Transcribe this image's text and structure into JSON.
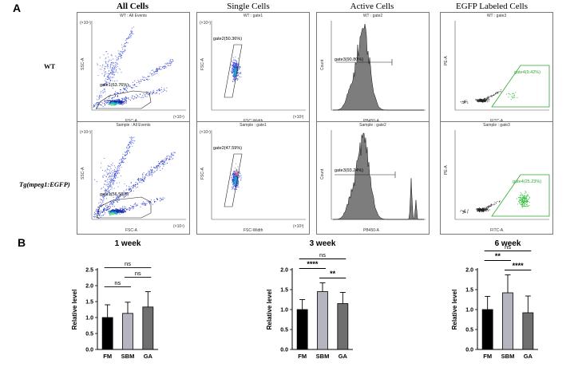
{
  "panel_a_letter": "A",
  "panel_b_letter": "B",
  "columns": [
    "All Cells",
    "Single Cells",
    "Active Cells",
    "EGFP Labeled Cells"
  ],
  "rows": [
    {
      "label": "WT",
      "plots": [
        {
          "title": "WT : All Events",
          "gate": "gate1(63.76%)",
          "xlabel": "FSC-A",
          "ylabel": "SSC-A",
          "yexp": "(×10⁴)",
          "xexp": "(×10⁴)"
        },
        {
          "title": "WT : gate1",
          "gate": "gate2(50.36%)",
          "xlabel": "FSC-Width",
          "ylabel": "FSC-A",
          "yexp": "(×10⁴)",
          "xexp": "(×10³)"
        },
        {
          "title": "WT : gate2",
          "gate": "gate3(90.80%)",
          "xlabel": "PB450-A",
          "ylabel": "Count"
        },
        {
          "title": "WT : gate3",
          "gate": "gate4(9.42%)",
          "xlabel": "FITC-A",
          "ylabel": "PE-A"
        }
      ]
    },
    {
      "label": "Tg(mpeg1:EGFP)",
      "plots": [
        {
          "title": "Sample : All Events",
          "gate": "gate1(56.58%)",
          "xlabel": "FSC-A",
          "ylabel": "SSC-A",
          "yexp": "(×10⁴)",
          "xexp": "(×10⁴)"
        },
        {
          "title": "Sample : gate1",
          "gate": "gate2(47.59%)",
          "xlabel": "FSC-Width",
          "ylabel": "FSC-A",
          "yexp": "(×10⁴)",
          "xexp": "(×10³)"
        },
        {
          "title": "Sample : gate2",
          "gate": "gate3(93.24%)",
          "xlabel": "PB450-A",
          "ylabel": "Count"
        },
        {
          "title": "Sample : gate3",
          "gate": "gate4(25.23%)",
          "xlabel": "FITC-A",
          "ylabel": "PE-A"
        }
      ]
    }
  ],
  "chart_data": [
    {
      "type": "bar",
      "title": "1 week",
      "ylabel": "Relative level",
      "categories": [
        "FM",
        "SBM",
        "GA"
      ],
      "values": [
        1.0,
        1.13,
        1.33
      ],
      "errors": [
        0.4,
        0.35,
        0.48
      ],
      "colors": [
        "#000000",
        "#b5b5c0",
        "#6f6f6f"
      ],
      "ylim": [
        0,
        2.5
      ],
      "yticks": [
        "0.0",
        "0.5",
        "1.0",
        "1.5",
        "2.0",
        "2.5"
      ],
      "significance": [
        {
          "from": 0,
          "to": 2,
          "label": "ns"
        },
        {
          "from": 1,
          "to": 2,
          "label": "ns"
        },
        {
          "from": 0,
          "to": 1,
          "label": "ns"
        }
      ]
    },
    {
      "type": "bar",
      "title": "3 week",
      "ylabel": "Relative level",
      "categories": [
        "FM",
        "SBM",
        "GA"
      ],
      "values": [
        1.0,
        1.45,
        1.15
      ],
      "errors": [
        0.25,
        0.22,
        0.28
      ],
      "colors": [
        "#000000",
        "#b5b5c0",
        "#6f6f6f"
      ],
      "ylim": [
        0,
        2.0
      ],
      "yticks": [
        "0.0",
        "0.5",
        "1.0",
        "1.5",
        "2.0"
      ],
      "significance": [
        {
          "from": 0,
          "to": 2,
          "label": "ns"
        },
        {
          "from": 0,
          "to": 1,
          "label": "****"
        },
        {
          "from": 1,
          "to": 2,
          "label": "**"
        }
      ]
    },
    {
      "type": "bar",
      "title": "6 week",
      "ylabel": "Relative level",
      "categories": [
        "FM",
        "SBM",
        "GA"
      ],
      "values": [
        1.0,
        1.42,
        0.92
      ],
      "errors": [
        0.33,
        0.45,
        0.42
      ],
      "colors": [
        "#000000",
        "#b5b5c0",
        "#6f6f6f"
      ],
      "ylim": [
        0,
        2.0
      ],
      "yticks": [
        "0.0",
        "0.5",
        "1.0",
        "1.5",
        "2.0"
      ],
      "significance": [
        {
          "from": 0,
          "to": 2,
          "label": "ns"
        },
        {
          "from": 0,
          "to": 1,
          "label": "**"
        },
        {
          "from": 1,
          "to": 2,
          "label": "****"
        }
      ]
    }
  ]
}
